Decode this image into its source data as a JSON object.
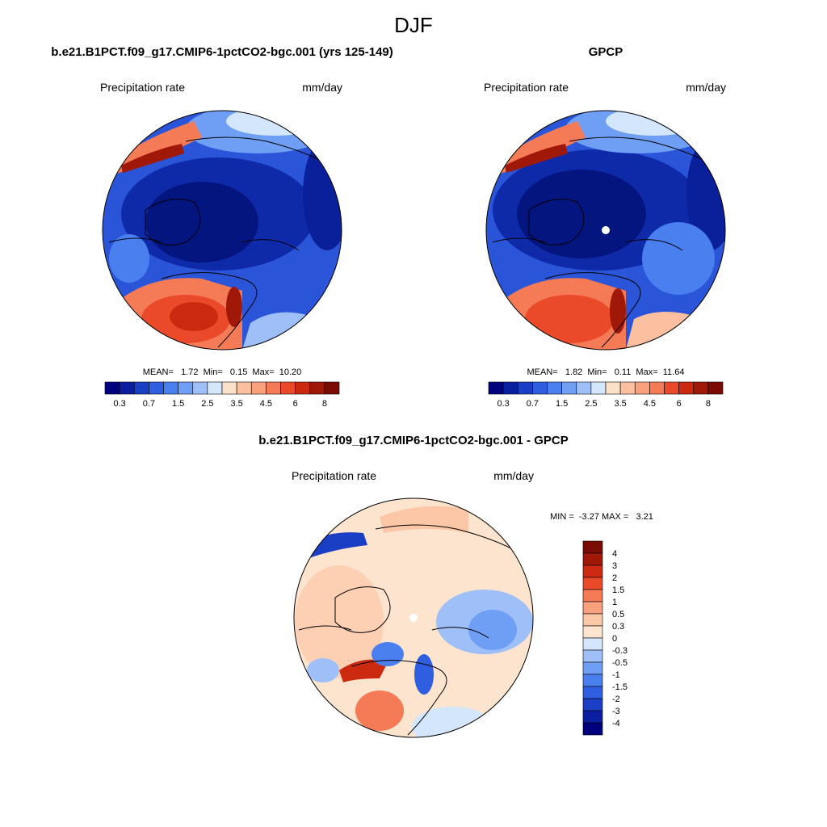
{
  "figure": {
    "title": "DJF"
  },
  "panels": [
    {
      "id": "model",
      "title": "b.e21.B1PCT.f09_g17.CMIP6-1pctCO2-bgc.001 (yrs 125-149)",
      "left_label": "Precipitation rate",
      "right_label": "mm/day",
      "stats": "MEAN=   1.72  Min=   0.15  Max=  10.20",
      "colorbar": "abs"
    },
    {
      "id": "obs",
      "title": "GPCP",
      "left_label": "Precipitation rate",
      "right_label": "mm/day",
      "stats": "MEAN=   1.82  Min=   0.11  Max=  11.64",
      "colorbar": "abs"
    },
    {
      "id": "diff",
      "title": "b.e21.B1PCT.f09_g17.CMIP6-1pctCO2-bgc.001 - GPCP",
      "left_label": "Precipitation rate",
      "right_label": "mm/day",
      "stats": "MIN =  -3.27 MAX =   3.21",
      "colorbar": "diff"
    }
  ],
  "colorbars": {
    "abs": {
      "colors": [
        "#00007f",
        "#0a1fa0",
        "#1b3fc4",
        "#2f5fe0",
        "#4a7ff0",
        "#6f9ff5",
        "#9fbff8",
        "#d4e6fb",
        "#fde0c8",
        "#fcc0a0",
        "#f9a07d",
        "#f57a56",
        "#ea4a2a",
        "#cc2a10",
        "#a01808",
        "#7a0c04"
      ],
      "labels": [
        "0.3",
        "0.7",
        "1.5",
        "2.5",
        "3.5",
        "4.5",
        "6",
        "8"
      ]
    },
    "diff": {
      "colors": [
        "#00007f",
        "#0a1fa0",
        "#1b3fc4",
        "#2f5fe0",
        "#4a7ff0",
        "#6f9ff5",
        "#9fbff8",
        "#d4e6fb",
        "#fde4cf",
        "#fcc7a6",
        "#f9a07d",
        "#f57a56",
        "#ea4a2a",
        "#cc2a10",
        "#a01808",
        "#7a0c04"
      ],
      "labels": [
        "4",
        "3",
        "2",
        "1.5",
        "1",
        "0.5",
        "0.3",
        "0",
        "-0.3",
        "-0.5",
        "-1",
        "-1.5",
        "-2",
        "-3",
        "-4"
      ]
    }
  }
}
